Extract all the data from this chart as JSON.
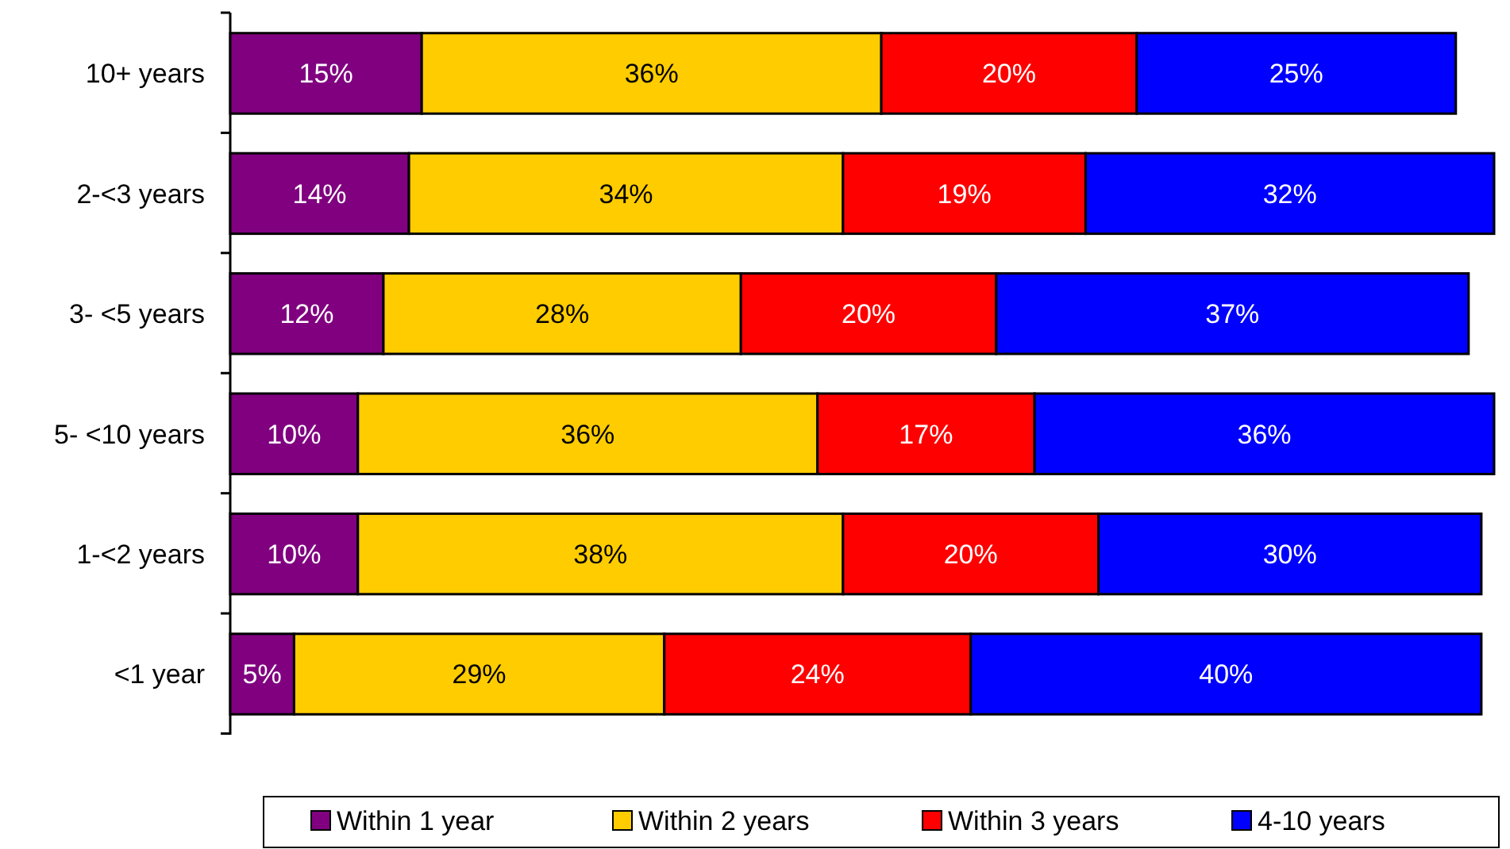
{
  "chart_data": {
    "type": "bar",
    "orientation": "horizontal",
    "stacked": true,
    "legend": "bottom",
    "categories": [
      "10+ years",
      "2-<3 years",
      "3- <5 years",
      "5- <10 years",
      "1-<2 years",
      "<1 year"
    ],
    "series": [
      {
        "name": "Within 1 year",
        "color": "#800080",
        "values": [
          15,
          14,
          12,
          10,
          10,
          5
        ],
        "value_labels": [
          "15%",
          "14%",
          "12%",
          "10%",
          "10%",
          "5%"
        ]
      },
      {
        "name": "Within 2 years",
        "color": "#ffcc00",
        "values": [
          36,
          34,
          28,
          36,
          38,
          29
        ],
        "value_labels": [
          "36%",
          "34%",
          "28%",
          "36%",
          "38%",
          "29%"
        ]
      },
      {
        "name": "Within 3 years",
        "color": "#ff0000",
        "values": [
          20,
          19,
          20,
          17,
          20,
          24
        ],
        "value_labels": [
          "20%",
          "19%",
          "20%",
          "17%",
          "20%",
          "24%"
        ]
      },
      {
        "name": "4-10 years",
        "color": "#0000ff",
        "values": [
          25,
          32,
          37,
          36,
          30,
          40
        ],
        "value_labels": [
          "25%",
          "32%",
          "37%",
          "36%",
          "30%",
          "40%"
        ]
      }
    ]
  }
}
